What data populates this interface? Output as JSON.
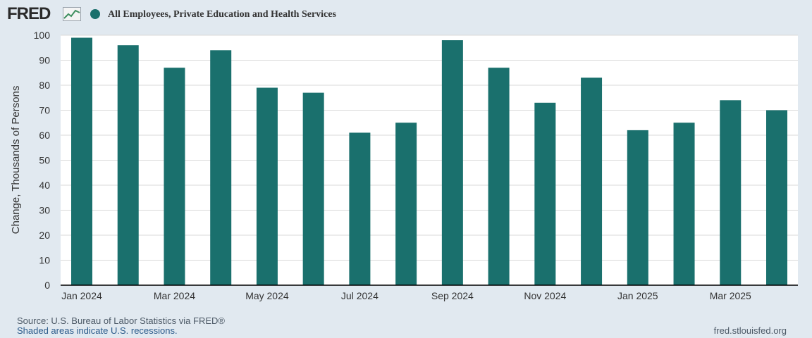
{
  "header": {
    "logo_text": "FRED",
    "series_label": "All Employees, Private Education and Health Services",
    "series_color": "#1a706d"
  },
  "footer": {
    "source": "Source: U.S. Bureau of Labor Statistics via FRED®",
    "note": "Shaded areas indicate U.S. recessions.",
    "url": "fred.stlouisfed.org"
  },
  "chart_data": {
    "type": "bar",
    "title": "",
    "xlabel": "",
    "ylabel": "Change, Thousands of Persons",
    "ylim": [
      0,
      100
    ],
    "yticks": [
      0,
      10,
      20,
      30,
      40,
      50,
      60,
      70,
      80,
      90,
      100
    ],
    "grid": true,
    "categories": [
      "Jan 2024",
      "Feb 2024",
      "Mar 2024",
      "Apr 2024",
      "May 2024",
      "Jun 2024",
      "Jul 2024",
      "Aug 2024",
      "Sep 2024",
      "Oct 2024",
      "Nov 2024",
      "Dec 2024",
      "Jan 2025",
      "Feb 2025",
      "Mar 2025",
      "Apr 2025"
    ],
    "xtick_labels": [
      "Jan 2024",
      "",
      "Mar 2024",
      "",
      "May 2024",
      "",
      "Jul 2024",
      "",
      "Sep 2024",
      "",
      "Nov 2024",
      "",
      "Jan 2025",
      "",
      "Mar 2025",
      ""
    ],
    "series": [
      {
        "name": "All Employees, Private Education and Health Services",
        "color": "#1a706d",
        "values": [
          99,
          96,
          87,
          94,
          79,
          77,
          61,
          65,
          98,
          87,
          73,
          83,
          62,
          65,
          74,
          70
        ]
      }
    ]
  }
}
